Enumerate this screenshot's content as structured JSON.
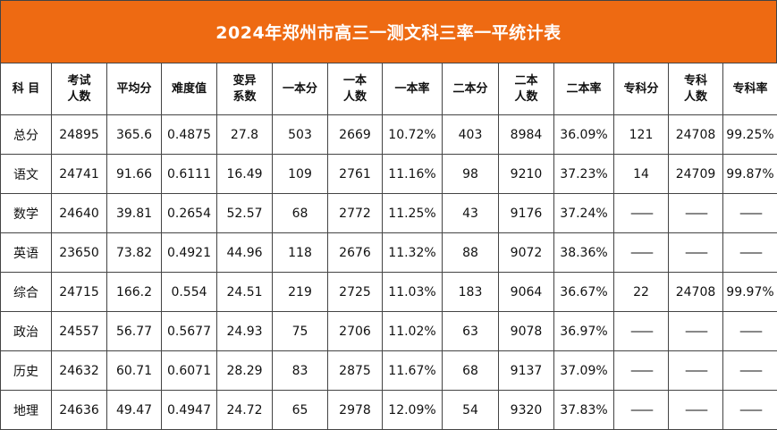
{
  "title": "2024年郑州市高三一测文科三率一平统计表",
  "headers": [
    "科 目",
    "考试\n人数",
    "平均分",
    "难度值",
    "变异\n系数",
    "一本分",
    "一本\n人数",
    "一本率",
    "二本分",
    "二本\n人数",
    "二本率",
    "专科分",
    "专科\n人数",
    "专科率"
  ],
  "rows": [
    [
      "总分",
      "24895",
      "365.6",
      "0.4875",
      "27.8",
      "503",
      "2669",
      "10.72%",
      "403",
      "8984",
      "36.09%",
      "121",
      "24708",
      "99.25%"
    ],
    [
      "语文",
      "24741",
      "91.66",
      "0.6111",
      "16.49",
      "109",
      "2761",
      "11.16%",
      "98",
      "9210",
      "37.23%",
      "14",
      "24709",
      "99.87%"
    ],
    [
      "数学",
      "24640",
      "39.81",
      "0.2654",
      "52.57",
      "68",
      "2772",
      "11.25%",
      "43",
      "9176",
      "37.24%",
      "——",
      "——",
      "——"
    ],
    [
      "英语",
      "23650",
      "73.82",
      "0.4921",
      "44.96",
      "118",
      "2676",
      "11.32%",
      "88",
      "9072",
      "38.36%",
      "——",
      "——",
      "——"
    ],
    [
      "综合",
      "24715",
      "166.2",
      "0.554",
      "24.51",
      "219",
      "2725",
      "11.03%",
      "183",
      "9064",
      "36.67%",
      "22",
      "24708",
      "99.97%"
    ],
    [
      "政治",
      "24557",
      "56.77",
      "0.5677",
      "24.93",
      "75",
      "2706",
      "11.02%",
      "63",
      "9078",
      "36.97%",
      "——",
      "——",
      "——"
    ],
    [
      "历史",
      "24632",
      "60.71",
      "0.6071",
      "28.29",
      "83",
      "2875",
      "11.67%",
      "68",
      "9137",
      "37.09%",
      "——",
      "——",
      "——"
    ],
    [
      "地理",
      "24636",
      "49.47",
      "0.4947",
      "24.72",
      "65",
      "2978",
      "12.09%",
      "54",
      "9320",
      "37.83%",
      "——",
      "——",
      "——"
    ]
  ],
  "colors": {
    "title_bg": "#ee6a12",
    "title_text": "#ffffff",
    "border": "#444444"
  }
}
